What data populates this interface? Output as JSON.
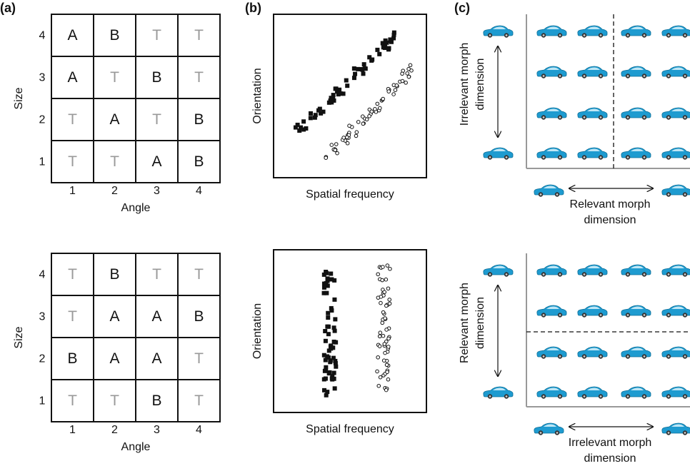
{
  "panels": [
    "(a)",
    "(b)",
    "(c)"
  ],
  "grids": [
    {
      "rows": [
        [
          "A",
          "B",
          "T",
          "T"
        ],
        [
          "A",
          "T",
          "B",
          "T"
        ],
        [
          "T",
          "A",
          "T",
          "B"
        ],
        [
          "T",
          "T",
          "A",
          "B"
        ]
      ],
      "row_labels": [
        "4",
        "3",
        "2",
        "1"
      ],
      "col_labels": [
        "1",
        "2",
        "3",
        "4"
      ],
      "y_label": "Size",
      "x_label": "Angle"
    },
    {
      "rows": [
        [
          "T",
          "B",
          "T",
          "T"
        ],
        [
          "T",
          "A",
          "A",
          "B"
        ],
        [
          "B",
          "A",
          "A",
          "T"
        ],
        [
          "T",
          "T",
          "B",
          "T"
        ]
      ],
      "row_labels": [
        "4",
        "3",
        "2",
        "1"
      ],
      "col_labels": [
        "1",
        "2",
        "3",
        "4"
      ],
      "y_label": "Size",
      "x_label": "Angle"
    }
  ],
  "scatters": [
    {
      "y_label": "Orientation",
      "x_label": "Spatial frequency"
    },
    {
      "y_label": "Orientation",
      "x_label": "Spatial frequency"
    }
  ],
  "morphs": [
    {
      "vertical_label": [
        "Irrelevant morph",
        "dimension"
      ],
      "horizontal_label": [
        "Relevant morph",
        "dimension"
      ]
    },
    {
      "vertical_label": [
        "Relevant morph",
        "dimension"
      ],
      "horizontal_label": [
        "Irrelevant morph",
        "dimension"
      ]
    }
  ]
}
